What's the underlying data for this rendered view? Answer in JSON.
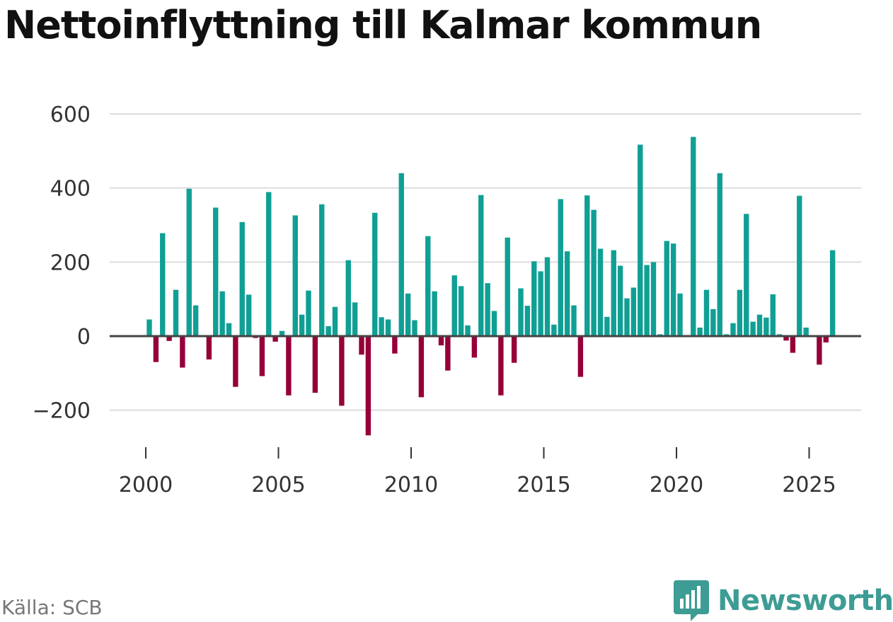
{
  "title": "Nettoinflyttning till Kalmar kommun",
  "source": "Källa: SCB",
  "brand": "Newsworthy",
  "colors": {
    "positive": "#109f94",
    "negative": "#960039",
    "brand": "#3d9c94"
  },
  "chart_data": {
    "type": "bar",
    "title": "Nettoinflyttning till Kalmar kommun",
    "xlabel": "",
    "ylabel": "",
    "frequency": "quarterly",
    "x_start": 2000.0,
    "xlim": [
      2000,
      2026
    ],
    "ylim": [
      -250,
      620
    ],
    "y_ticks": [
      600,
      400,
      200,
      0,
      -200
    ],
    "y_tick_labels": [
      "600",
      "400",
      "200",
      "0",
      "−200"
    ],
    "x_ticks": [
      2000,
      2005,
      2010,
      2015,
      2020,
      2025
    ],
    "x_tick_labels": [
      "2000",
      "2005",
      "2010",
      "2015",
      "2020",
      "2025"
    ],
    "values": [
      45,
      -70,
      278,
      -13,
      125,
      -85,
      398,
      83,
      0,
      -63,
      347,
      121,
      35,
      -137,
      308,
      112,
      -5,
      -108,
      389,
      -15,
      14,
      -160,
      326,
      58,
      123,
      -153,
      356,
      27,
      79,
      -188,
      205,
      91,
      -50,
      -268,
      333,
      51,
      45,
      -47,
      440,
      115,
      43,
      -165,
      270,
      121,
      -25,
      -93,
      164,
      135,
      29,
      -58,
      381,
      143,
      68,
      -160,
      266,
      -72,
      129,
      82,
      202,
      175,
      213,
      31,
      370,
      229,
      83,
      -110,
      380,
      341,
      236,
      52,
      232,
      190,
      102,
      131,
      517,
      192,
      200,
      5,
      257,
      250,
      115,
      0,
      538,
      23,
      125,
      73,
      440,
      5,
      35,
      125,
      330,
      39,
      58,
      50,
      113,
      5,
      -12,
      -45,
      379,
      23,
      0,
      -77,
      -17,
      232
    ]
  }
}
